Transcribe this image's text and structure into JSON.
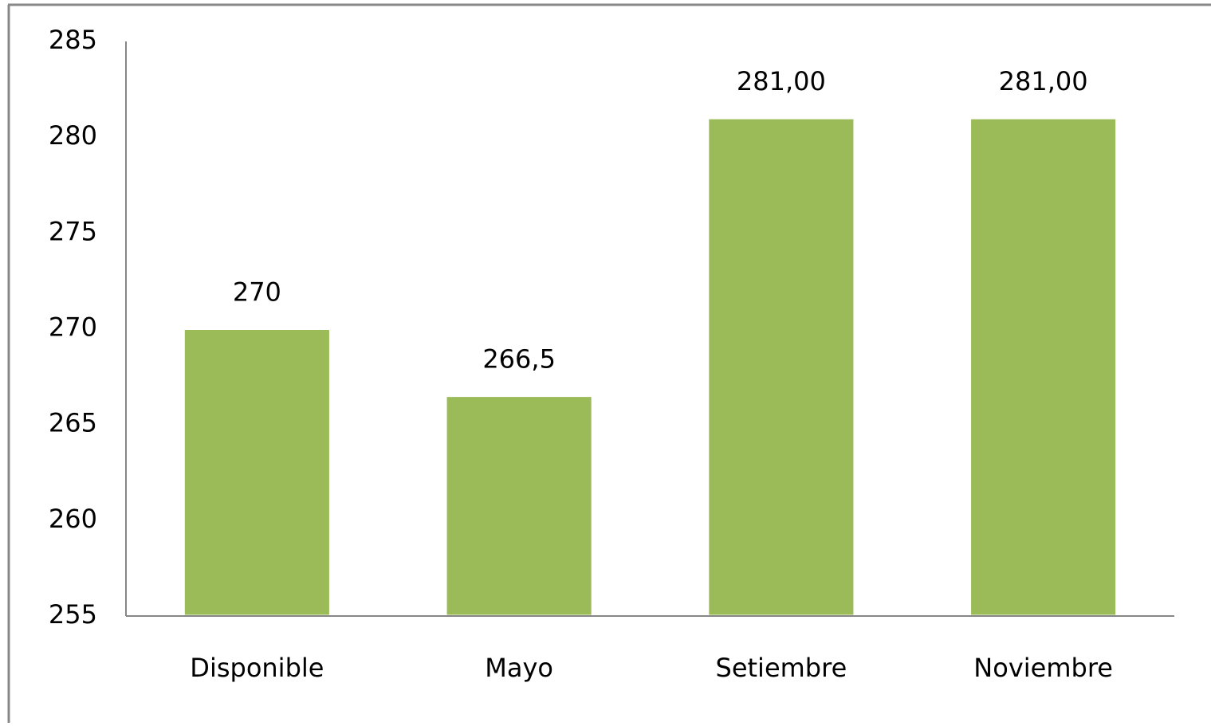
{
  "chart_data": {
    "type": "bar",
    "categories": [
      "Disponible",
      "Mayo",
      "Setiembre",
      "Noviembre"
    ],
    "values": [
      270,
      266.5,
      281,
      281
    ],
    "value_labels": [
      "270",
      "266,5",
      "281,00",
      "281,00"
    ],
    "color": "#9bbb59",
    "ylim": [
      255,
      285
    ],
    "yticks": [
      255,
      260,
      265,
      270,
      275,
      280,
      285
    ],
    "grid": false
  }
}
